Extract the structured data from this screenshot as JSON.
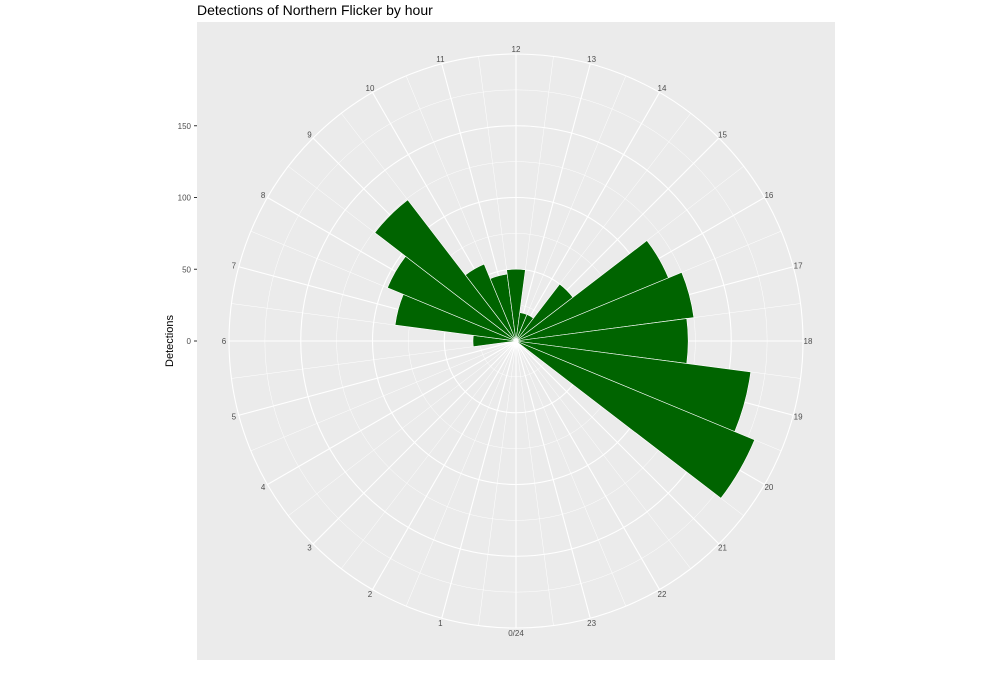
{
  "chart_data": {
    "type": "bar",
    "coordinate_system": "polar",
    "title": "Detections of Northern Flicker by hour",
    "xlabel": "",
    "ylabel": "Detections",
    "categories": [
      "0/24",
      "1",
      "2",
      "3",
      "4",
      "5",
      "6",
      "7",
      "8",
      "9",
      "10",
      "11",
      "12",
      "13",
      "14",
      "15",
      "16",
      "17",
      "18",
      "19",
      "20",
      "21",
      "22",
      "23"
    ],
    "hour_values": [
      0,
      1,
      2,
      3,
      4,
      5,
      6,
      7,
      8,
      9,
      10,
      11,
      12,
      13,
      14,
      15,
      16,
      17,
      18,
      19,
      20,
      21,
      22,
      23
    ],
    "series": [
      {
        "values": [
          0,
          0,
          0,
          0,
          0,
          0,
          30,
          85,
          97,
          124,
          58,
          47,
          50,
          20,
          20,
          50,
          115,
          125,
          120,
          165,
          180,
          0,
          0,
          0
        ]
      }
    ],
    "y_ticks": [
      0,
      50,
      100,
      150
    ],
    "ylim": [
      0,
      200
    ],
    "grid": true,
    "legend": "none",
    "colors": {
      "bar": "#006400",
      "panel": "#ebebeb",
      "grid": "#ffffff",
      "text": "#4d4d4d"
    }
  }
}
